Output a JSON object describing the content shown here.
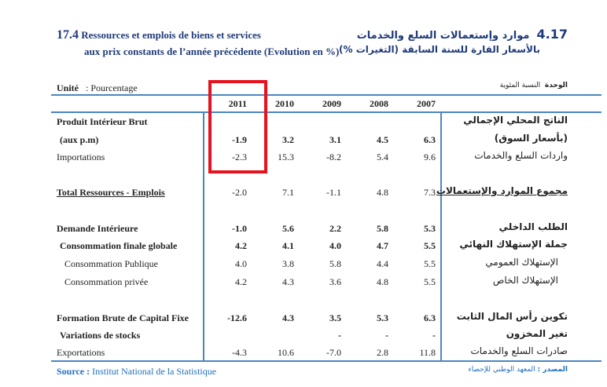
{
  "title_fr": {
    "number": "17.4",
    "line1": "Ressources et emplois de biens et services",
    "line2": "aux prix constants de l’année précédente (Evolution en %)"
  },
  "title_ar": {
    "number": "4.17",
    "line1": "موارد وإستعمالات السلع والخدمات",
    "line2": "بالأسعار القارة للسنة السابقة (التغيرات %)"
  },
  "unit_fr": {
    "label": "Unité",
    "value": ": Pourcentage"
  },
  "unit_ar": {
    "label": "الوحدة",
    "value": "النسبة المئوية"
  },
  "years": [
    "2011",
    "2010",
    "2009",
    "2008",
    "2007"
  ],
  "rows": [
    {
      "fr": "Produit Intérieur Brut",
      "ar": "الناتج المحلي الإجمالي",
      "values": [
        "",
        "",
        "",
        "",
        ""
      ],
      "style": "b"
    },
    {
      "fr": "(aux p.m)",
      "ar": "(بأسعار السوق)",
      "values": [
        "-1.9",
        "3.2",
        "3.1",
        "4.5",
        "6.3"
      ],
      "style": "b"
    },
    {
      "fr": "Importations",
      "ar": "واردات السلع والخدمات",
      "values": [
        "-2.3",
        "15.3",
        "-8.2",
        "5.4",
        "9.6"
      ],
      "style": ""
    },
    {
      "fr": "Total Ressources - Emplois",
      "ar": "مجموع الموارد والإستعمالات",
      "values": [
        "-2.0",
        "7.1",
        "-1.1",
        "4.8",
        "7.3"
      ],
      "style": "total"
    },
    {
      "fr": "Demande Intérieure",
      "ar": "الطلب الداخلي",
      "values": [
        "-1.0",
        "5.6",
        "2.2",
        "5.8",
        "5.3"
      ],
      "style": "b"
    },
    {
      "fr": "Consommation finale globale",
      "ar": "جملة الإستهلاك النهائي",
      "values": [
        "4.2",
        "4.1",
        "4.0",
        "4.7",
        "5.5"
      ],
      "style": "b"
    },
    {
      "fr": "Consommation Publique",
      "ar": "الإستهلاك العمومي",
      "values": [
        "4.0",
        "3.8",
        "5.8",
        "4.4",
        "5.5"
      ],
      "style": "sub"
    },
    {
      "fr": "Consommation privée",
      "ar": "الإستهلاك الخاص",
      "values": [
        "4.2",
        "4.3",
        "3.6",
        "4.8",
        "5.5"
      ],
      "style": "sub"
    },
    {
      "fr": "Formation Brute de Capital Fixe",
      "ar": "تكوين رأس المال الثابت",
      "values": [
        "-12.6",
        "4.3",
        "3.5",
        "5.3",
        "6.3"
      ],
      "style": "b"
    },
    {
      "fr": "Variations de stocks",
      "ar": "تغير المخزون",
      "values": [
        "",
        "",
        "-",
        "-",
        "-"
      ],
      "style": "b"
    },
    {
      "fr": "Exportations",
      "ar": "صادرات السلع والخدمات",
      "values": [
        "-4.3",
        "10.6",
        "-7.0",
        "2.8",
        "11.8"
      ],
      "style": ""
    }
  ],
  "source_fr": {
    "label": "Source :",
    "value": "Institut National de la Statistique"
  },
  "source_ar": {
    "label": "المصدر :",
    "value": "المعهد الوطني للإحصاء"
  },
  "colors": {
    "title": "#1f3a7a",
    "rule": "#4a86c0",
    "highlight": "#e8121f",
    "source": "#1f6fc0"
  }
}
